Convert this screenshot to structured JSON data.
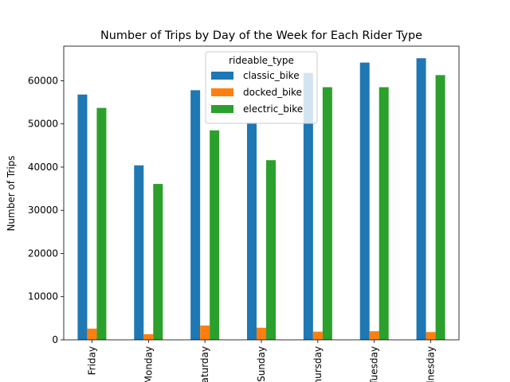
{
  "chart_data": {
    "type": "bar",
    "title": "Number of Trips by Day of the Week for Each Rider Type",
    "xlabel": "",
    "ylabel": "Number of Trips",
    "ylim": [
      0,
      68000
    ],
    "yticks": [
      0,
      10000,
      20000,
      30000,
      40000,
      50000,
      60000
    ],
    "grid": false,
    "legend_title": "rideable_type",
    "legend_position": "top-center",
    "categories": [
      "Friday",
      "Monday",
      "Saturday",
      "Sunday",
      "Thursday",
      "Tuesday",
      "Wednesday"
    ],
    "series": [
      {
        "name": "classic_bike",
        "color": "#1f77b4",
        "values": [
          56800,
          40400,
          57800,
          50300,
          61800,
          64200,
          65200
        ]
      },
      {
        "name": "docked_bike",
        "color": "#ff7f0e",
        "values": [
          2600,
          1300,
          3300,
          2800,
          1900,
          2000,
          1800
        ]
      },
      {
        "name": "electric_bike",
        "color": "#2ca02c",
        "values": [
          53700,
          36100,
          48500,
          41600,
          58500,
          58500,
          61300
        ]
      }
    ]
  }
}
